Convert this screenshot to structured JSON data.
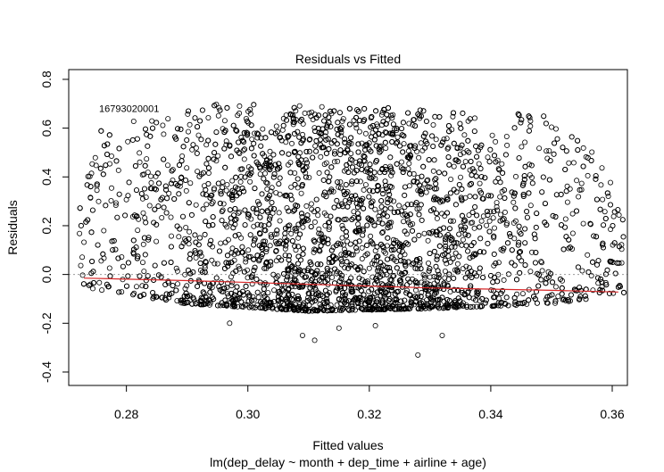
{
  "chart_data": {
    "type": "scatter",
    "title": "Residuals vs Fitted",
    "xlabel": "Fitted values",
    "subtitle": "lm(dep_delay ~ month + dep_time + airline + age)",
    "ylabel": "Residuals",
    "xlim": [
      0.2705,
      0.3625
    ],
    "ylim": [
      -0.455,
      0.84
    ],
    "x_ticks": [
      0.28,
      0.3,
      0.32,
      0.34,
      0.36
    ],
    "x_tick_labels": [
      "0.28",
      "0.30",
      "0.32",
      "0.34",
      "0.36"
    ],
    "y_ticks": [
      -0.4,
      -0.2,
      0.0,
      0.2,
      0.4,
      0.6,
      0.8
    ],
    "y_tick_labels": [
      "-0.4",
      "-0.2",
      "0.0",
      "0.2",
      "0.4",
      "0.6",
      "0.8"
    ],
    "grid": false,
    "reference_line_y": 0.0,
    "point_density": {
      "description_free_band": "points cluster between y=-0.15 and y=0.70 across x=0.272 to 0.362",
      "lower_envelope": [
        [
          0.272,
          -0.05
        ],
        [
          0.29,
          -0.12
        ],
        [
          0.31,
          -0.15
        ],
        [
          0.33,
          -0.14
        ],
        [
          0.35,
          -0.12
        ],
        [
          0.362,
          -0.08
        ]
      ],
      "upper_envelope": [
        [
          0.272,
          0.25
        ],
        [
          0.276,
          0.62
        ],
        [
          0.295,
          0.7
        ],
        [
          0.33,
          0.68
        ],
        [
          0.35,
          0.65
        ],
        [
          0.356,
          0.6
        ],
        [
          0.362,
          0.25
        ]
      ]
    },
    "outliers": [
      {
        "x": 0.311,
        "y": -0.27
      },
      {
        "x": 0.309,
        "y": -0.25
      },
      {
        "x": 0.328,
        "y": -0.33
      },
      {
        "x": 0.315,
        "y": -0.22
      },
      {
        "x": 0.332,
        "y": -0.25
      },
      {
        "x": 0.297,
        "y": -0.2
      },
      {
        "x": 0.321,
        "y": -0.21
      }
    ],
    "smoother": {
      "color": "#d62728",
      "x": [
        0.273,
        0.29,
        0.31,
        0.33,
        0.35,
        0.361
      ],
      "y": [
        -0.015,
        -0.025,
        -0.04,
        -0.055,
        -0.065,
        -0.072
      ]
    },
    "annotation": {
      "text": "16793020001",
      "x": 0.2755,
      "y": 0.68
    }
  }
}
